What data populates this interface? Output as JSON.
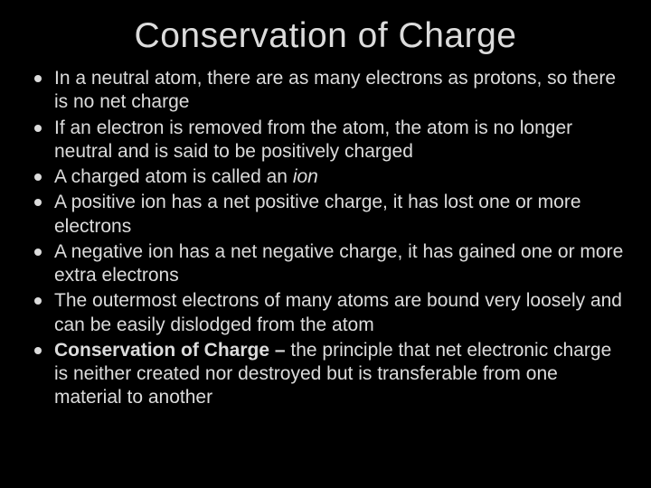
{
  "slide": {
    "background_color": "#000000",
    "text_color": "#dcdcdc",
    "title": "Conservation of Charge",
    "title_fontsize": 39,
    "body_fontsize": 21,
    "bullets": [
      {
        "text": "In a neutral atom, there are as many electrons as protons, so there is no net charge"
      },
      {
        "text": "If an electron is removed from the atom, the atom is no longer neutral and is said to be positively charged"
      },
      {
        "prefix": "A charged atom is called an ",
        "italic": "ion"
      },
      {
        "text": "A positive ion has a net positive charge, it has lost one or more electrons"
      },
      {
        "text": "A negative ion has a net negative charge, it has gained one or more extra electrons"
      },
      {
        "text": "The outermost electrons of many atoms are bound very loosely and can be easily dislodged from the atom"
      },
      {
        "bold": "Conservation of Charge – ",
        "suffix": "the principle that net electronic charge is neither created nor destroyed but is transferable from one material to another"
      }
    ]
  }
}
